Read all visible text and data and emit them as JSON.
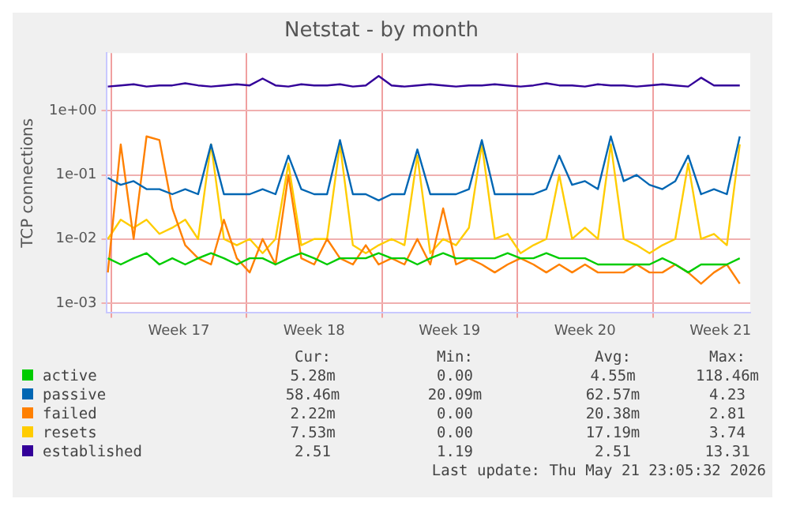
{
  "chart_data": {
    "type": "line",
    "title": "Netstat - by month",
    "ylabel": "TCP connections",
    "log": "y",
    "grid": true,
    "legend": "bottom",
    "marker": "none",
    "line_style": "solid",
    "ylim": [
      0.0007,
      8
    ],
    "yticks": [
      {
        "value": 0.001,
        "label": "1e-03"
      },
      {
        "value": 0.01,
        "label": "1e-02"
      },
      {
        "value": 0.1,
        "label": "1e-01"
      },
      {
        "value": 1,
        "label": "1e+00"
      }
    ],
    "xlim": [
      "2026-04-19T18:00",
      "2026-05-23T01:00"
    ],
    "xticks": [
      {
        "value": "2026-04-20",
        "label": null
      },
      {
        "value": "2026-04-23T12:00",
        "label": "Week 17"
      },
      {
        "value": "2026-04-27",
        "label": null
      },
      {
        "value": "2026-04-30T12:00",
        "label": "Week 18"
      },
      {
        "value": "2026-05-04",
        "label": null
      },
      {
        "value": "2026-05-07T12:00",
        "label": "Week 19"
      },
      {
        "value": "2026-05-11",
        "label": null
      },
      {
        "value": "2026-05-14T12:00",
        "label": "Week 20"
      },
      {
        "value": "2026-05-18",
        "label": null
      },
      {
        "value": "2026-05-21T12:00",
        "label": "Week 21"
      }
    ],
    "x": [
      "2026-04-19T20:00",
      "2026-04-20T12:00",
      "2026-04-21T04:00",
      "2026-04-21T20:00",
      "2026-04-22T12:00",
      "2026-04-23T04:00",
      "2026-04-23T20:00",
      "2026-04-24T12:00",
      "2026-04-25T04:00",
      "2026-04-25T20:00",
      "2026-04-26T12:00",
      "2026-04-27T04:00",
      "2026-04-27T20:00",
      "2026-04-28T12:00",
      "2026-04-29T04:00",
      "2026-04-29T20:00",
      "2026-04-30T12:00",
      "2026-05-01T04:00",
      "2026-05-01T20:00",
      "2026-05-02T12:00",
      "2026-05-03T04:00",
      "2026-05-03T20:00",
      "2026-05-04T12:00",
      "2026-05-05T04:00",
      "2026-05-05T20:00",
      "2026-05-06T12:00",
      "2026-05-07T04:00",
      "2026-05-07T20:00",
      "2026-05-08T12:00",
      "2026-05-09T04:00",
      "2026-05-09T20:00",
      "2026-05-10T12:00",
      "2026-05-11T04:00",
      "2026-05-11T20:00",
      "2026-05-12T12:00",
      "2026-05-13T04:00",
      "2026-05-13T20:00",
      "2026-05-14T12:00",
      "2026-05-15T04:00",
      "2026-05-15T20:00",
      "2026-05-16T12:00",
      "2026-05-17T04:00",
      "2026-05-17T20:00",
      "2026-05-18T12:00",
      "2026-05-19T04:00",
      "2026-05-19T20:00",
      "2026-05-20T12:00",
      "2026-05-21T04:00",
      "2026-05-21T20:00",
      "2026-05-22T12:00"
    ],
    "series": [
      {
        "name": "active",
        "color": "#00cc00",
        "values": [
          0.005,
          0.004,
          0.005,
          0.006,
          0.004,
          0.005,
          0.004,
          0.005,
          0.006,
          0.005,
          0.004,
          0.005,
          0.005,
          0.004,
          0.005,
          0.006,
          0.005,
          0.004,
          0.005,
          0.005,
          0.005,
          0.006,
          0.005,
          0.005,
          0.004,
          0.005,
          0.006,
          0.005,
          0.005,
          0.005,
          0.005,
          0.006,
          0.005,
          0.005,
          0.006,
          0.005,
          0.005,
          0.005,
          0.004,
          0.004,
          0.004,
          0.004,
          0.004,
          0.005,
          0.004,
          0.003,
          0.004,
          0.004,
          0.004,
          0.005
        ]
      },
      {
        "name": "passive",
        "color": "#0066b3",
        "values": [
          0.09,
          0.07,
          0.08,
          0.06,
          0.06,
          0.05,
          0.06,
          0.05,
          0.3,
          0.05,
          0.05,
          0.05,
          0.06,
          0.05,
          0.2,
          0.06,
          0.05,
          0.05,
          0.35,
          0.05,
          0.05,
          0.04,
          0.05,
          0.05,
          0.25,
          0.05,
          0.05,
          0.05,
          0.06,
          0.35,
          0.05,
          0.05,
          0.05,
          0.05,
          0.06,
          0.2,
          0.07,
          0.08,
          0.06,
          0.4,
          0.08,
          0.1,
          0.07,
          0.06,
          0.08,
          0.2,
          0.05,
          0.06,
          0.05,
          0.4
        ]
      },
      {
        "name": "failed",
        "color": "#ff8000",
        "values": [
          0.003,
          0.3,
          0.01,
          0.4,
          0.35,
          0.03,
          0.008,
          0.005,
          0.004,
          0.02,
          0.005,
          0.003,
          0.01,
          0.004,
          0.1,
          0.005,
          0.004,
          0.01,
          0.005,
          0.004,
          0.008,
          0.004,
          0.005,
          0.004,
          0.01,
          0.004,
          0.03,
          0.004,
          0.005,
          0.004,
          0.003,
          0.004,
          0.005,
          0.004,
          0.003,
          0.004,
          0.003,
          0.004,
          0.003,
          0.003,
          0.003,
          0.004,
          0.003,
          0.003,
          0.004,
          0.003,
          0.002,
          0.003,
          0.004,
          0.002
        ]
      },
      {
        "name": "resets",
        "color": "#ffcc00",
        "values": [
          0.01,
          0.02,
          0.015,
          0.02,
          0.012,
          0.015,
          0.02,
          0.01,
          0.3,
          0.01,
          0.008,
          0.01,
          0.006,
          0.01,
          0.15,
          0.008,
          0.01,
          0.01,
          0.3,
          0.008,
          0.006,
          0.008,
          0.01,
          0.008,
          0.2,
          0.006,
          0.01,
          0.008,
          0.015,
          0.3,
          0.01,
          0.012,
          0.006,
          0.008,
          0.01,
          0.1,
          0.01,
          0.015,
          0.01,
          0.3,
          0.01,
          0.008,
          0.006,
          0.008,
          0.01,
          0.15,
          0.01,
          0.012,
          0.008,
          0.3
        ]
      },
      {
        "name": "established",
        "color": "#330099",
        "values": [
          2.4,
          2.5,
          2.6,
          2.4,
          2.5,
          2.5,
          2.7,
          2.5,
          2.4,
          2.5,
          2.6,
          2.5,
          3.2,
          2.5,
          2.4,
          2.6,
          2.5,
          2.5,
          2.6,
          2.4,
          2.5,
          3.5,
          2.5,
          2.4,
          2.5,
          2.6,
          2.5,
          2.4,
          2.5,
          2.5,
          2.6,
          2.5,
          2.4,
          2.5,
          2.7,
          2.5,
          2.5,
          2.4,
          2.6,
          2.5,
          2.5,
          2.4,
          2.5,
          2.6,
          2.5,
          2.4,
          3.3,
          2.5,
          2.5,
          2.5
        ]
      }
    ],
    "annotations": [
      "Cur:",
      "Min:",
      "Avg:",
      "Max:",
      "5.28m",
      "0.00",
      "4.55m",
      "118.46m",
      "58.46m",
      "20.09m",
      "62.57m",
      "4.23",
      "2.22m",
      "0.00",
      "20.38m",
      "2.81",
      "7.53m",
      "0.00",
      "17.19m",
      "3.74",
      "2.51",
      "1.19",
      "2.51",
      "13.31",
      "Last update: Thu May 21 23:05:32 2026"
    ]
  }
}
